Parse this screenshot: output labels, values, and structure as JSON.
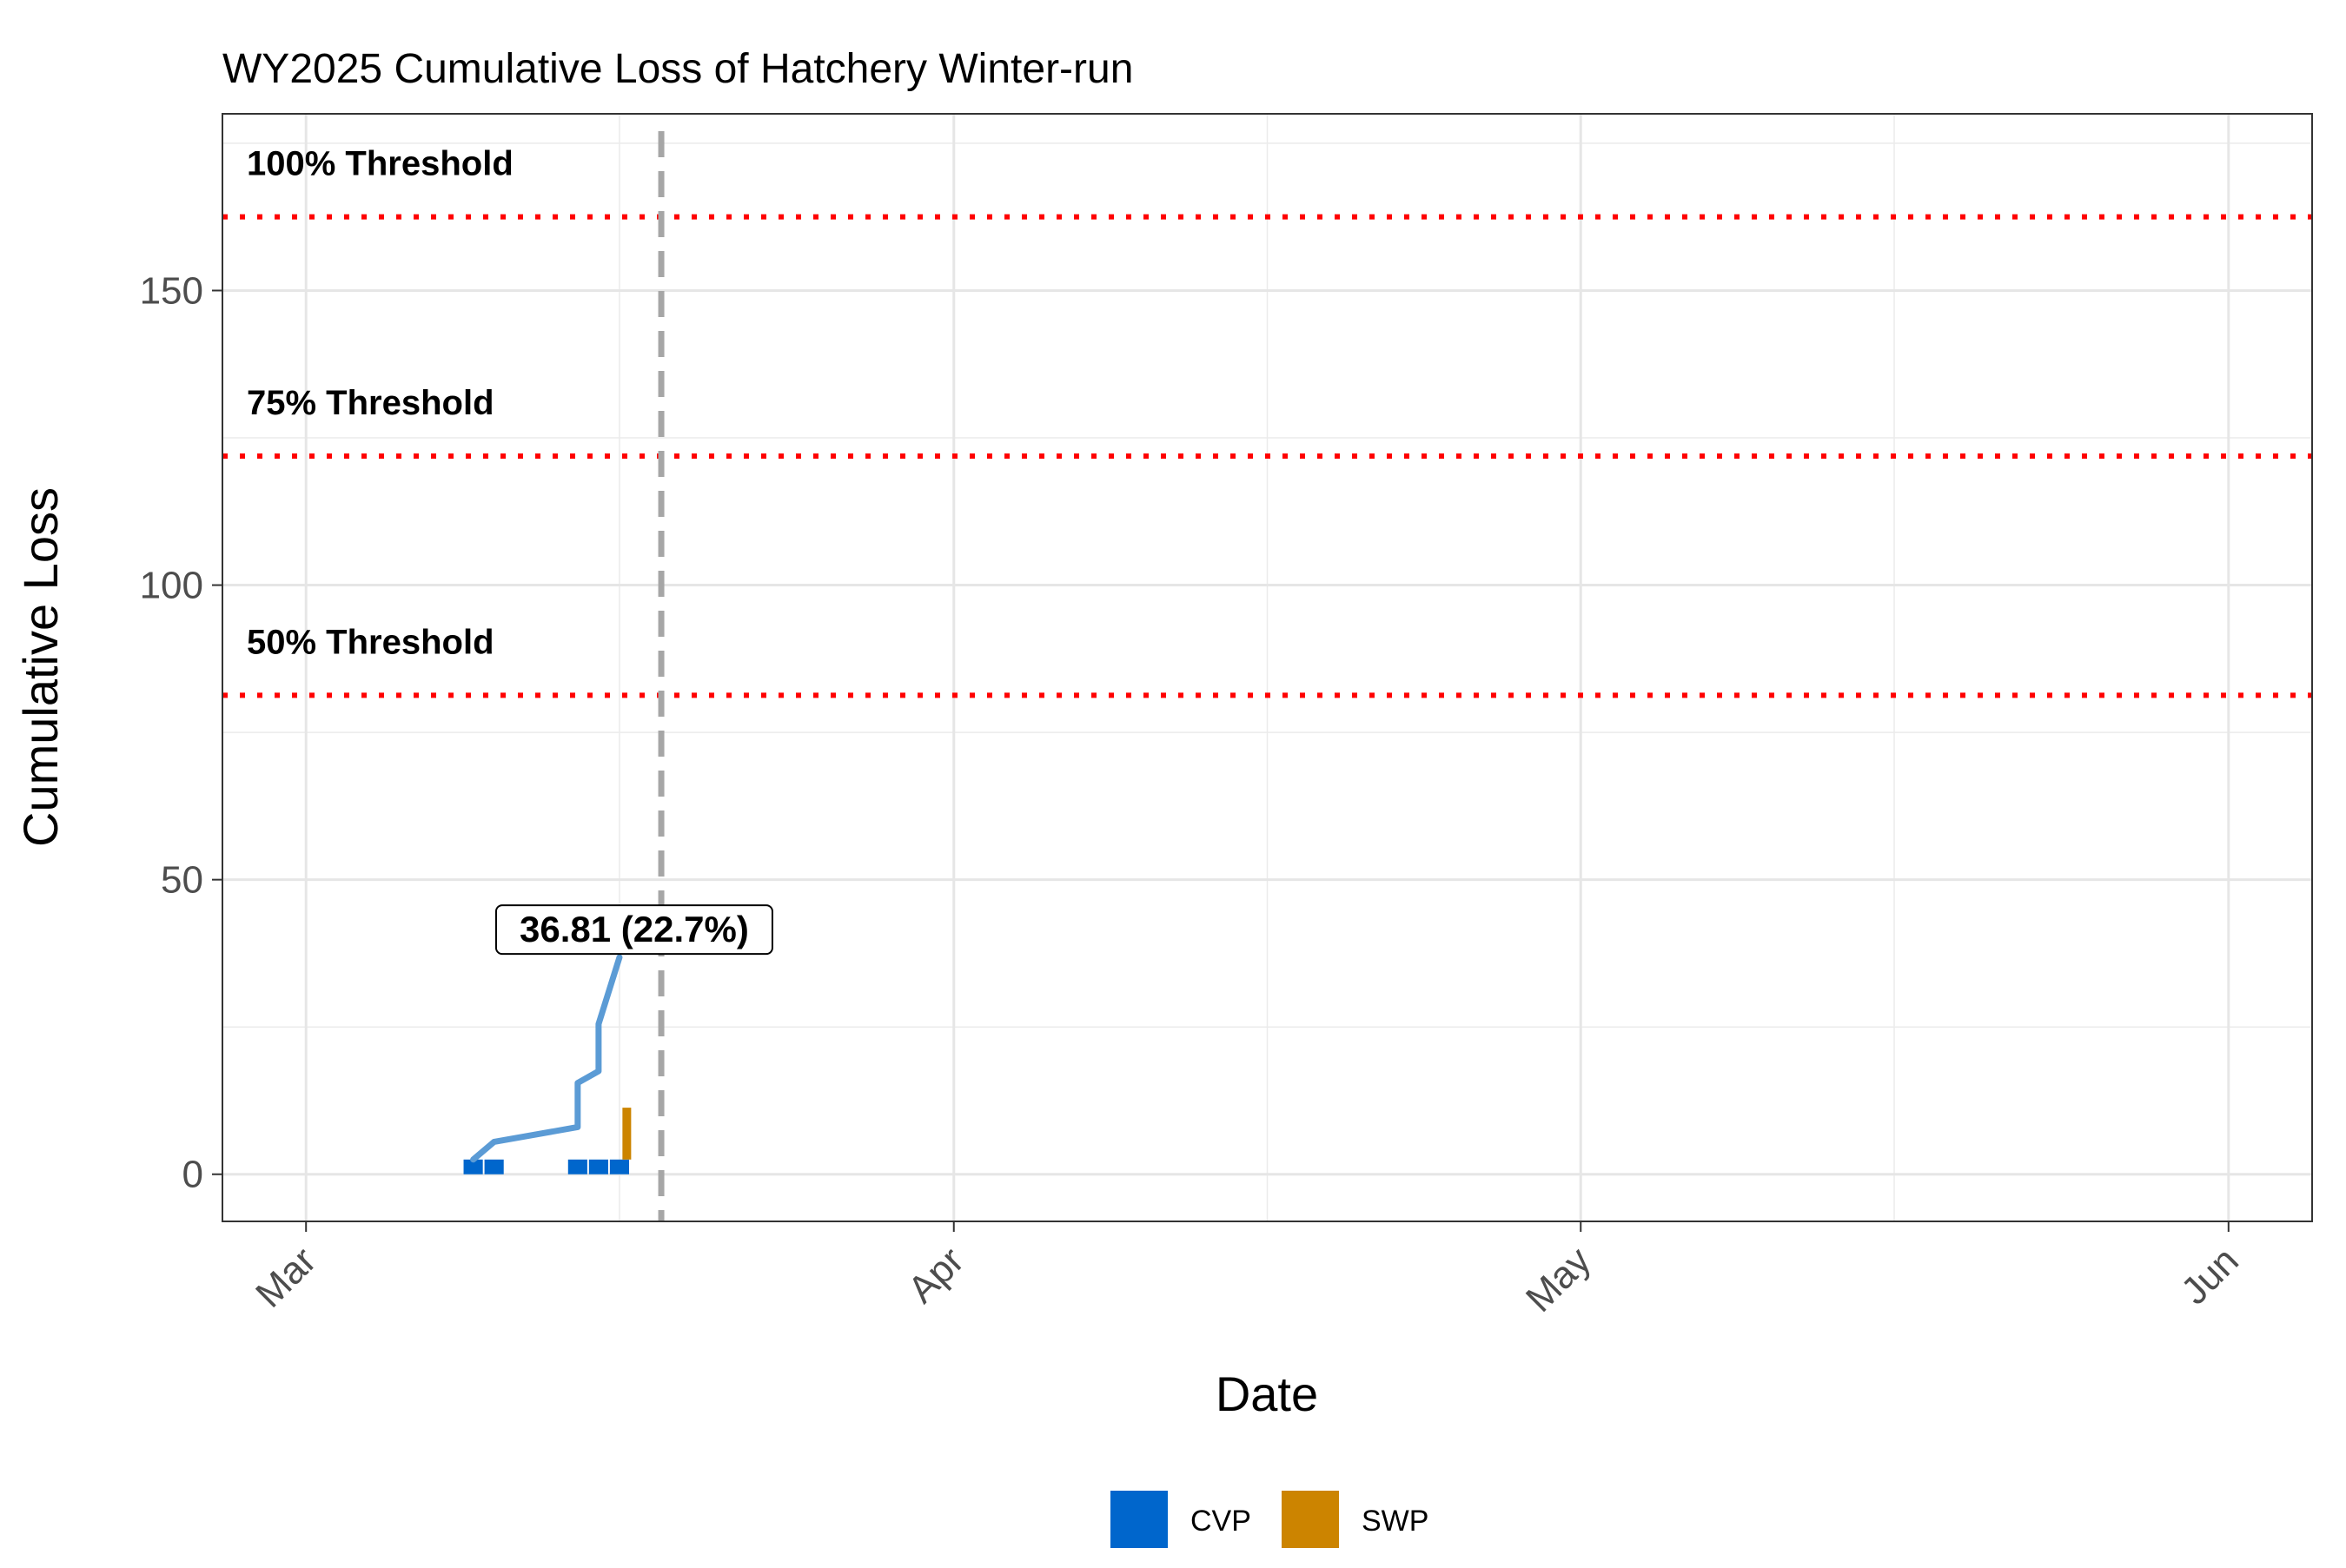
{
  "chart_data": {
    "type": "line",
    "title": "WY2025 Cumulative Loss of Hatchery Winter-run",
    "xlabel": "Date",
    "ylabel": "Cumulative Loss",
    "xlim": [
      "2025-02-25",
      "2025-06-05"
    ],
    "ylim": [
      -8,
      180
    ],
    "x_ticks": [
      {
        "date": "2025-03-01",
        "label": "Mar"
      },
      {
        "date": "2025-04-01",
        "label": "Apr"
      },
      {
        "date": "2025-05-01",
        "label": "May"
      },
      {
        "date": "2025-06-01",
        "label": "Jun"
      }
    ],
    "x_minor_dates": [
      "2025-03-16",
      "2025-04-16",
      "2025-05-16"
    ],
    "y_ticks": [
      0,
      50,
      100,
      150
    ],
    "y_minor": [
      25,
      75,
      125,
      175
    ],
    "grid": true,
    "cumulative_series": {
      "color": "#5b9bd5",
      "points": [
        {
          "x": "2025-03-09",
          "y": 2.5
        },
        {
          "x": "2025-03-10",
          "y": 5.5
        },
        {
          "x": "2025-03-14",
          "y": 8.0
        },
        {
          "x": "2025-03-14",
          "y": 15.5
        },
        {
          "x": "2025-03-15",
          "y": 17.5
        },
        {
          "x": "2025-03-15",
          "y": 25.5
        },
        {
          "x": "2025-03-16",
          "y": 36.81
        }
      ]
    },
    "daily_loss_bars": [
      {
        "date": "2025-03-09",
        "facility": "CVP",
        "value": 2.5
      },
      {
        "date": "2025-03-10",
        "facility": "CVP",
        "value": 2.5
      },
      {
        "date": "2025-03-14",
        "facility": "CVP",
        "value": 2.5
      },
      {
        "date": "2025-03-15",
        "facility": "CVP",
        "value": 2.5
      },
      {
        "date": "2025-03-16",
        "facility": "CVP",
        "value": 2.5
      },
      {
        "date": "2025-03-16",
        "facility": "SWP",
        "value": 8.8
      }
    ],
    "thresholds": [
      {
        "label": "100% Threshold",
        "value": 162.5
      },
      {
        "label": "75% Threshold",
        "value": 121.9
      },
      {
        "label": "50% Threshold",
        "value": 81.3
      }
    ],
    "threshold_color": "#ff0000",
    "current_date_line": {
      "date": "2025-03-18",
      "color": "#a6a6a6"
    },
    "end_label": {
      "text": "36.81 (22.7%)",
      "x": "2025-03-16",
      "y": 36.81
    },
    "legend": {
      "position": "bottom",
      "items": [
        {
          "name": "CVP",
          "color": "#0066cc"
        },
        {
          "name": "SWP",
          "color": "#cc8400"
        }
      ]
    }
  }
}
